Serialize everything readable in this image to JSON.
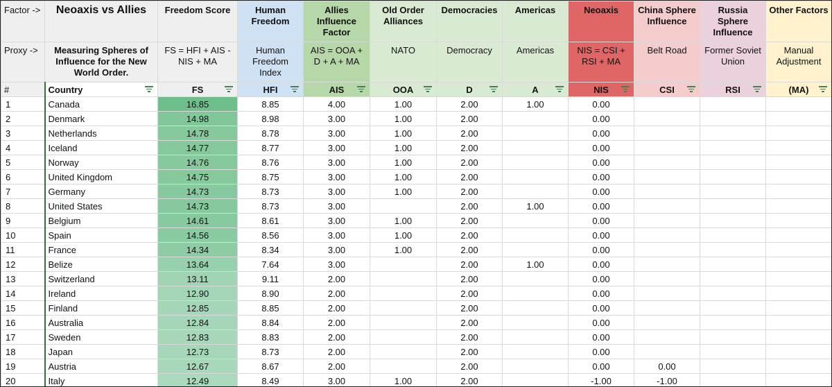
{
  "row_labels": {
    "factor": "Factor ->",
    "proxy": "Proxy ->",
    "num": "#"
  },
  "title": "Neoaxis vs Allies",
  "subtitle": "Measuring Spheres of Influence for the New World Order.",
  "factors": [
    {
      "name": "Freedom Score",
      "proxy": "FS = HFI + AIS - NIS + MA",
      "code": "FS",
      "color": "#efefef"
    },
    {
      "name": "Human Freedom",
      "proxy": "Human Freedom Index",
      "code": "HFI",
      "color": "#cfe2f3"
    },
    {
      "name": "Allies Influence Factor",
      "proxy": "AIS = OOA + D + A + MA",
      "code": "AIS",
      "color": "#b6d7a8"
    },
    {
      "name": "Old Order Alliances",
      "proxy": "NATO",
      "code": "OOA",
      "color": "#d9ead3"
    },
    {
      "name": "Democracies",
      "proxy": "Democracy",
      "code": "D",
      "color": "#d9ead3"
    },
    {
      "name": "Americas",
      "proxy": "Americas",
      "code": "A",
      "color": "#d9ead3"
    },
    {
      "name": "Neoaxis",
      "proxy": "NIS = CSI + RSI + MA",
      "code": "NIS",
      "color": "#e06666"
    },
    {
      "name": "China Sphere Influence",
      "proxy": "Belt Road",
      "code": "CSI",
      "color": "#f4cccc"
    },
    {
      "name": "Russia Sphere Influence",
      "proxy": "Former Soviet Union",
      "code": "RSI",
      "color": "#ead1dc"
    },
    {
      "name": "Other Factors",
      "proxy": "Manual Adjustment",
      "code": "(MA)",
      "color": "#fff2cc"
    }
  ],
  "country_header": "Country",
  "rows": [
    {
      "n": "1",
      "country": "Canada",
      "fs": "16.85",
      "hfi": "8.85",
      "ais": "4.00",
      "ooa": "1.00",
      "d": "2.00",
      "a": "1.00",
      "nis": "0.00",
      "csi": "",
      "rsi": "",
      "ma": "",
      "shade": "#6fbf8a"
    },
    {
      "n": "2",
      "country": "Denmark",
      "fs": "14.98",
      "hfi": "8.98",
      "ais": "3.00",
      "ooa": "1.00",
      "d": "2.00",
      "a": "",
      "nis": "0.00",
      "csi": "",
      "rsi": "",
      "ma": "",
      "shade": "#82c79a"
    },
    {
      "n": "3",
      "country": "Netherlands",
      "fs": "14.78",
      "hfi": "8.78",
      "ais": "3.00",
      "ooa": "1.00",
      "d": "2.00",
      "a": "",
      "nis": "0.00",
      "csi": "",
      "rsi": "",
      "ma": "",
      "shade": "#84c89c"
    },
    {
      "n": "4",
      "country": "Iceland",
      "fs": "14.77",
      "hfi": "8.77",
      "ais": "3.00",
      "ooa": "1.00",
      "d": "2.00",
      "a": "",
      "nis": "0.00",
      "csi": "",
      "rsi": "",
      "ma": "",
      "shade": "#84c89c"
    },
    {
      "n": "5",
      "country": "Norway",
      "fs": "14.76",
      "hfi": "8.76",
      "ais": "3.00",
      "ooa": "1.00",
      "d": "2.00",
      "a": "",
      "nis": "0.00",
      "csi": "",
      "rsi": "",
      "ma": "",
      "shade": "#85c99d"
    },
    {
      "n": "6",
      "country": "United Kingdom",
      "fs": "14.75",
      "hfi": "8.75",
      "ais": "3.00",
      "ooa": "1.00",
      "d": "2.00",
      "a": "",
      "nis": "0.00",
      "csi": "",
      "rsi": "",
      "ma": "",
      "shade": "#85c99d"
    },
    {
      "n": "7",
      "country": "Germany",
      "fs": "14.73",
      "hfi": "8.73",
      "ais": "3.00",
      "ooa": "1.00",
      "d": "2.00",
      "a": "",
      "nis": "0.00",
      "csi": "",
      "rsi": "",
      "ma": "",
      "shade": "#86c99e"
    },
    {
      "n": "8",
      "country": "United States",
      "fs": "14.73",
      "hfi": "8.73",
      "ais": "3.00",
      "ooa": "",
      "d": "2.00",
      "a": "1.00",
      "nis": "0.00",
      "csi": "",
      "rsi": "",
      "ma": "",
      "shade": "#86c99e"
    },
    {
      "n": "9",
      "country": "Belgium",
      "fs": "14.61",
      "hfi": "8.61",
      "ais": "3.00",
      "ooa": "1.00",
      "d": "2.00",
      "a": "",
      "nis": "0.00",
      "csi": "",
      "rsi": "",
      "ma": "",
      "shade": "#88caa0"
    },
    {
      "n": "10",
      "country": "Spain",
      "fs": "14.56",
      "hfi": "8.56",
      "ais": "3.00",
      "ooa": "1.00",
      "d": "2.00",
      "a": "",
      "nis": "0.00",
      "csi": "",
      "rsi": "",
      "ma": "",
      "shade": "#89caa1"
    },
    {
      "n": "11",
      "country": "France",
      "fs": "14.34",
      "hfi": "8.34",
      "ais": "3.00",
      "ooa": "1.00",
      "d": "2.00",
      "a": "",
      "nis": "0.00",
      "csi": "",
      "rsi": "",
      "ma": "",
      "shade": "#8dcca4"
    },
    {
      "n": "12",
      "country": "Belize",
      "fs": "13.64",
      "hfi": "7.64",
      "ais": "3.00",
      "ooa": "",
      "d": "2.00",
      "a": "1.00",
      "nis": "0.00",
      "csi": "",
      "rsi": "",
      "ma": "",
      "shade": "#97d0ac"
    },
    {
      "n": "13",
      "country": "Switzerland",
      "fs": "13.11",
      "hfi": "9.11",
      "ais": "2.00",
      "ooa": "",
      "d": "2.00",
      "a": "",
      "nis": "0.00",
      "csi": "",
      "rsi": "",
      "ma": "",
      "shade": "#a0d4b3"
    },
    {
      "n": "14",
      "country": "Ireland",
      "fs": "12.90",
      "hfi": "8.90",
      "ais": "2.00",
      "ooa": "",
      "d": "2.00",
      "a": "",
      "nis": "0.00",
      "csi": "",
      "rsi": "",
      "ma": "",
      "shade": "#a3d6b6"
    },
    {
      "n": "15",
      "country": "Finland",
      "fs": "12.85",
      "hfi": "8.85",
      "ais": "2.00",
      "ooa": "",
      "d": "2.00",
      "a": "",
      "nis": "0.00",
      "csi": "",
      "rsi": "",
      "ma": "",
      "shade": "#a4d6b7"
    },
    {
      "n": "16",
      "country": "Australia",
      "fs": "12.84",
      "hfi": "8.84",
      "ais": "2.00",
      "ooa": "",
      "d": "2.00",
      "a": "",
      "nis": "0.00",
      "csi": "",
      "rsi": "",
      "ma": "",
      "shade": "#a4d6b7"
    },
    {
      "n": "17",
      "country": "Sweden",
      "fs": "12.83",
      "hfi": "8.83",
      "ais": "2.00",
      "ooa": "",
      "d": "2.00",
      "a": "",
      "nis": "0.00",
      "csi": "",
      "rsi": "",
      "ma": "",
      "shade": "#a5d7b8"
    },
    {
      "n": "18",
      "country": "Japan",
      "fs": "12.73",
      "hfi": "8.73",
      "ais": "2.00",
      "ooa": "",
      "d": "2.00",
      "a": "",
      "nis": "0.00",
      "csi": "",
      "rsi": "",
      "ma": "",
      "shade": "#a6d7b9"
    },
    {
      "n": "19",
      "country": "Austria",
      "fs": "12.67",
      "hfi": "8.67",
      "ais": "2.00",
      "ooa": "",
      "d": "2.00",
      "a": "",
      "nis": "0.00",
      "csi": "0.00",
      "rsi": "",
      "ma": "",
      "shade": "#a7d8ba"
    },
    {
      "n": "20",
      "country": "Italy",
      "fs": "12.49",
      "hfi": "8.49",
      "ais": "3.00",
      "ooa": "1.00",
      "d": "2.00",
      "a": "",
      "nis": "-1.00",
      "csi": "-1.00",
      "rsi": "",
      "ma": "",
      "shade": "#aad9bc"
    }
  ]
}
